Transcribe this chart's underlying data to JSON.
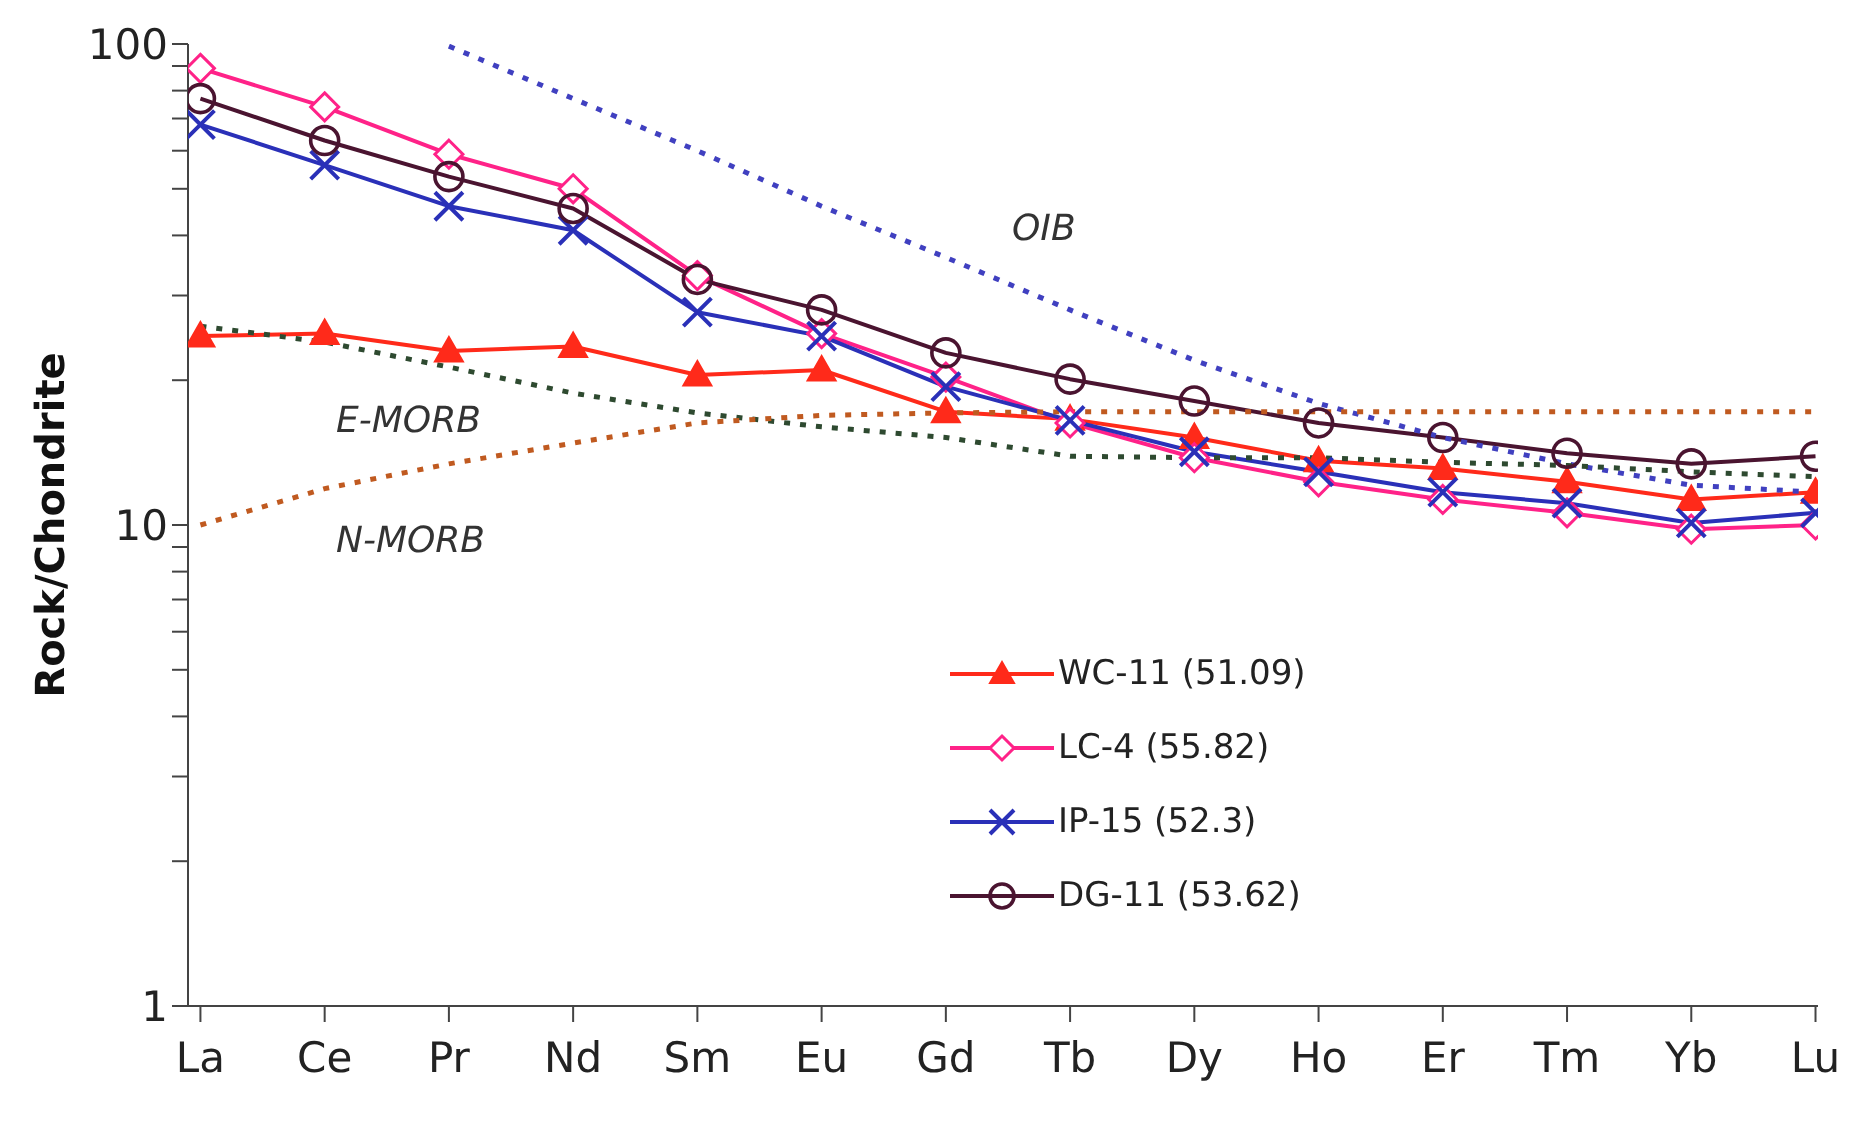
{
  "chart_data": {
    "type": "line",
    "ylabel": "Rock/Chondrite",
    "log": true,
    "categories": [
      "La",
      "Ce",
      "Pr",
      "Nd",
      "Sm",
      "Eu",
      "Gd",
      "Tb",
      "Dy",
      "Ho",
      "Er",
      "Tm",
      "Yb",
      "Lu"
    ],
    "ylim": [
      1,
      100
    ],
    "yticks": [
      1,
      {
        "value": 2,
        "label": null
      },
      {
        "value": 3,
        "label": null
      },
      {
        "value": 4,
        "label": null
      },
      {
        "value": 5,
        "label": null
      },
      {
        "value": 6,
        "label": null
      },
      {
        "value": 7,
        "label": null
      },
      {
        "value": 8,
        "label": null
      },
      {
        "value": 9,
        "label": null
      },
      10,
      {
        "value": 20,
        "label": null
      },
      {
        "value": 30,
        "label": null
      },
      {
        "value": 40,
        "label": null
      },
      {
        "value": 50,
        "label": null
      },
      {
        "value": 60,
        "label": null
      },
      {
        "value": 70,
        "label": null
      },
      {
        "value": 80,
        "label": null
      },
      {
        "value": 90,
        "label": null
      },
      100
    ],
    "grid": false,
    "legend": "bottom right",
    "series": [
      {
        "name": "WC-11 (51.09)",
        "color": "#ff2a1a",
        "marker": "triangle",
        "values": [
          24.7,
          25,
          23,
          23.5,
          20.5,
          21,
          17.2,
          16.6,
          15.2,
          13.6,
          13.1,
          12.3,
          11.3,
          11.7
        ]
      },
      {
        "name": "LC-4 (55.82)",
        "color": "#ff2288",
        "marker": "diamond",
        "values": [
          89,
          74,
          59,
          50,
          33,
          25,
          20.3,
          16.3,
          13.8,
          12.3,
          11.3,
          10.6,
          9.8,
          10
        ]
      },
      {
        "name": "IP-15 (52.3)",
        "color": "#2a30b8",
        "marker": "cross",
        "values": [
          68,
          56,
          46,
          41,
          27.7,
          24.7,
          19.4,
          16.5,
          14.2,
          12.9,
          11.7,
          11.1,
          10.1,
          10.6
        ]
      },
      {
        "name": "DG-11 (53.62)",
        "color": "#4a1430",
        "marker": "circle",
        "values": [
          77,
          63,
          53,
          45.5,
          32.4,
          28,
          22.8,
          20.1,
          18.1,
          16.3,
          15.2,
          14.1,
          13.4,
          13.9
        ]
      },
      {
        "color": "#4040c0",
        "marker": "none",
        "line_style": "dotted",
        "values": [
          null,
          null,
          99,
          77,
          60,
          46,
          36,
          28,
          22,
          17.9,
          15.2,
          13.4,
          12.1,
          11.7
        ]
      },
      {
        "color": "#2e4a30",
        "marker": "none",
        "line_style": "dotted",
        "values": [
          25.9,
          24,
          21.3,
          18.8,
          17.1,
          16,
          15.2,
          13.9,
          13.8,
          13.8,
          13.5,
          13.3,
          12.9,
          12.6
        ]
      },
      {
        "color": "#c05a20",
        "marker": "none",
        "line_style": "dotted",
        "values": [
          10,
          11.9,
          13.4,
          14.8,
          16.3,
          16.9,
          17.1,
          17.2,
          17.2,
          17.2,
          17.2,
          17.2,
          17.2,
          17.2
        ]
      }
    ],
    "annotations": [
      "OIB",
      "E-MORB",
      "N-MORB"
    ]
  }
}
